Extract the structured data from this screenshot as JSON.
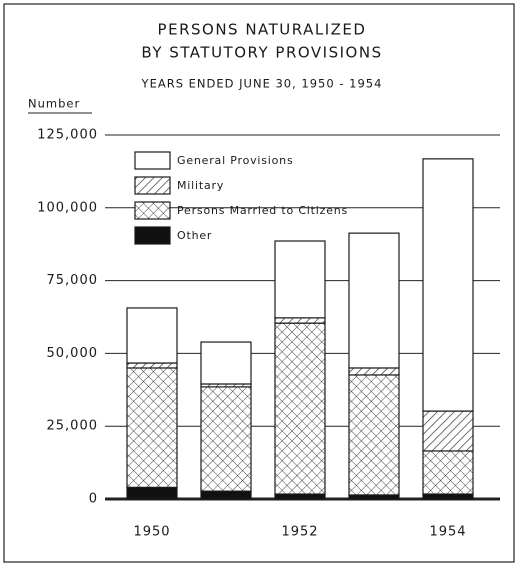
{
  "chart_data": {
    "type": "stacked_bar",
    "title": [
      "PERSONS NATURALIZED",
      "BY STATUTORY PROVISIONS"
    ],
    "subtitle": "YEARS ENDED JUNE 30, 1950 - 1954",
    "y_label": "Number",
    "categories": [
      "1950",
      null,
      "1952",
      null,
      "1954"
    ],
    "series": [
      {
        "name": "Other",
        "color": "#111111",
        "pattern": "solid",
        "values": [
          4000,
          2700,
          1700,
          1400,
          1700
        ]
      },
      {
        "name": "Persons Married to Citizens",
        "color": "#333333",
        "pattern": "crosshatch",
        "values": [
          41000,
          35800,
          58700,
          41200,
          14800
        ]
      },
      {
        "name": "Military",
        "color": "#222222",
        "pattern": "diagonal",
        "values": [
          1700,
          1000,
          1800,
          2400,
          13700
        ]
      },
      {
        "name": "General Provisions",
        "color": "#ffffff",
        "pattern": "solid",
        "values": [
          18900,
          14400,
          26400,
          46300,
          86600
        ]
      }
    ],
    "ylim": [
      0,
      125000
    ],
    "yticks": [
      0,
      {
        "value": 25000,
        "label": "25,000"
      },
      {
        "value": 50000,
        "label": "50,000"
      },
      {
        "value": 75000,
        "label": "75,000"
      },
      {
        "value": 100000,
        "label": "100,000"
      },
      {
        "value": 125000,
        "label": "125,000"
      }
    ],
    "grid": true,
    "legend": "upper left"
  }
}
